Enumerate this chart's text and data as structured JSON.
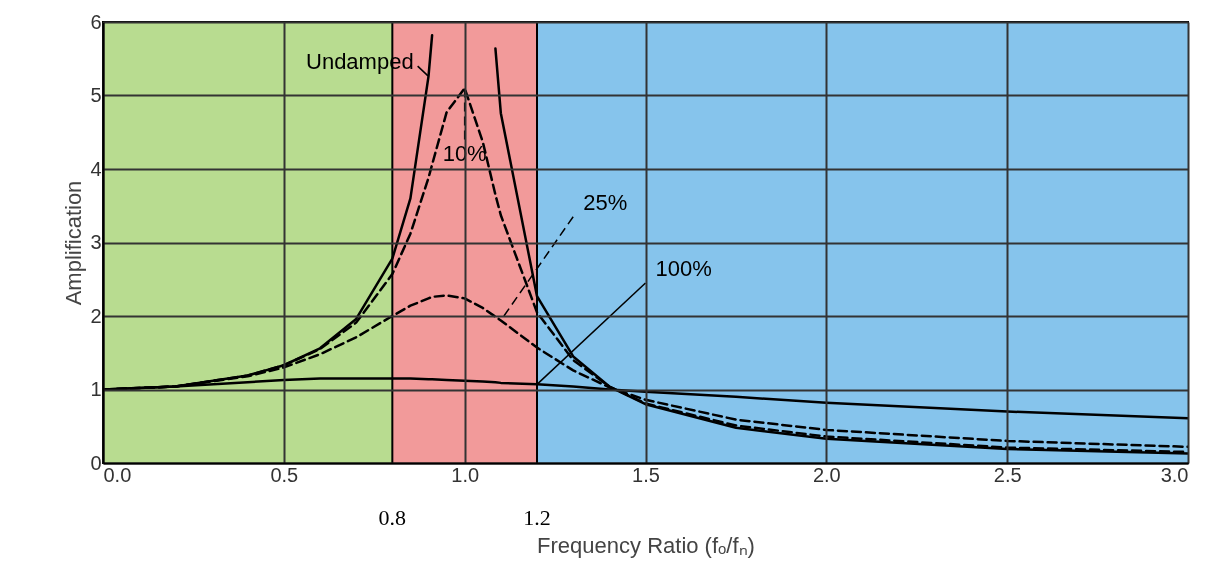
{
  "chart_data": {
    "type": "line",
    "xlabel": "Frequency Ratio (fₒ/fₙ)",
    "ylabel": "Amplification",
    "x": [
      0,
      0.2,
      0.4,
      0.5,
      0.6,
      0.7,
      0.8,
      0.85,
      0.9,
      0.91,
      0.95,
      1.0,
      1.05,
      1.085,
      1.1,
      1.2,
      1.3,
      1.4,
      1.5,
      1.75,
      2.0,
      2.5,
      3.0
    ],
    "series": [
      {
        "name": "Undamped",
        "color": "#000000",
        "line_style": "solid",
        "values": [
          1,
          1.04,
          1.19,
          1.33,
          1.56,
          1.96,
          2.78,
          3.6,
          5.26,
          5.82,
          null,
          null,
          null,
          5.64,
          4.76,
          2.27,
          1.45,
          1.04,
          0.8,
          0.48,
          0.33,
          0.19,
          0.13
        ]
      },
      {
        "name": "10%",
        "color": "#000000",
        "line_style": "dashed",
        "values": [
          1,
          1.04,
          1.19,
          1.33,
          1.55,
          1.91,
          2.57,
          3.12,
          3.88,
          4.06,
          4.77,
          5.1,
          4.37,
          3.65,
          3.37,
          2.05,
          1.4,
          1.04,
          0.81,
          0.51,
          0.36,
          0.21,
          0.15
        ]
      },
      {
        "name": "25%",
        "color": "#000000",
        "line_style": "dashed",
        "values": [
          1,
          1.04,
          1.18,
          1.3,
          1.48,
          1.71,
          2.0,
          2.14,
          2.24,
          2.26,
          2.28,
          2.24,
          2.11,
          1.99,
          1.94,
          1.57,
          1.26,
          1.03,
          0.86,
          0.59,
          0.45,
          0.3,
          0.22
        ]
      },
      {
        "name": "100%",
        "color": "#000000",
        "line_style": "solid",
        "values": [
          1,
          1.04,
          1.1,
          1.13,
          1.15,
          1.15,
          1.15,
          1.15,
          1.14,
          1.14,
          1.13,
          1.12,
          1.11,
          1.1,
          1.09,
          1.07,
          1.04,
          1.0,
          0.97,
          0.9,
          0.82,
          0.7,
          0.61
        ]
      }
    ],
    "xlim": [
      0,
      3
    ],
    "xticks": [
      {
        "value": 0,
        "label": "0.0"
      },
      0.5,
      {
        "value": 1,
        "label": "1.0"
      },
      1.5,
      {
        "value": 2,
        "label": "2.0"
      },
      2.5,
      {
        "value": 3,
        "label": "3.0"
      }
    ],
    "ylim": [
      0,
      6
    ],
    "yticks": [
      0,
      1,
      2,
      3,
      4,
      5,
      6
    ],
    "grid": true,
    "bands": [
      {
        "axis": "x",
        "from": 0,
        "to": 0.8,
        "color": "#b8dc90"
      },
      {
        "axis": "x",
        "from": 0.8,
        "to": 1.2,
        "color": "#f29a9a"
      },
      {
        "axis": "x",
        "from": 1.2,
        "to": 3,
        "color": "#86c4ec"
      }
    ],
    "ref_lines": [
      {
        "axis": "x",
        "value": 0.8,
        "label": "0.8",
        "color": "#000000"
      },
      {
        "axis": "x",
        "value": 1.2,
        "label": "1.2",
        "color": "#000000"
      }
    ]
  }
}
